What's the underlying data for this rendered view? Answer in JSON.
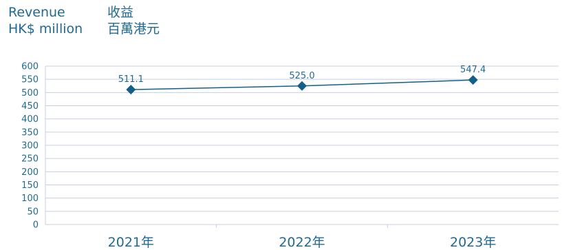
{
  "title": {
    "line1_en": "Revenue",
    "line1_zh": "收益",
    "line2_en": "HK$ million",
    "line2_zh": "百萬港元"
  },
  "colors": {
    "series": "#135f8c",
    "text": "#1f6a93",
    "grid": "#c5cfe0"
  },
  "chart_data": {
    "type": "line",
    "categories": [
      "2021年",
      "2022年",
      "2023年"
    ],
    "series": [
      {
        "values": [
          511.1,
          525.0,
          547.4
        ],
        "labels": [
          "511.1",
          "525.0",
          "547.4"
        ]
      }
    ],
    "ylim": [
      0,
      600
    ],
    "yticks": [
      "0",
      "50",
      "100",
      "150",
      "200",
      "250",
      "300",
      "350",
      "400",
      "450",
      "500",
      "550",
      "600"
    ],
    "grid": true,
    "marker": "diamond"
  }
}
